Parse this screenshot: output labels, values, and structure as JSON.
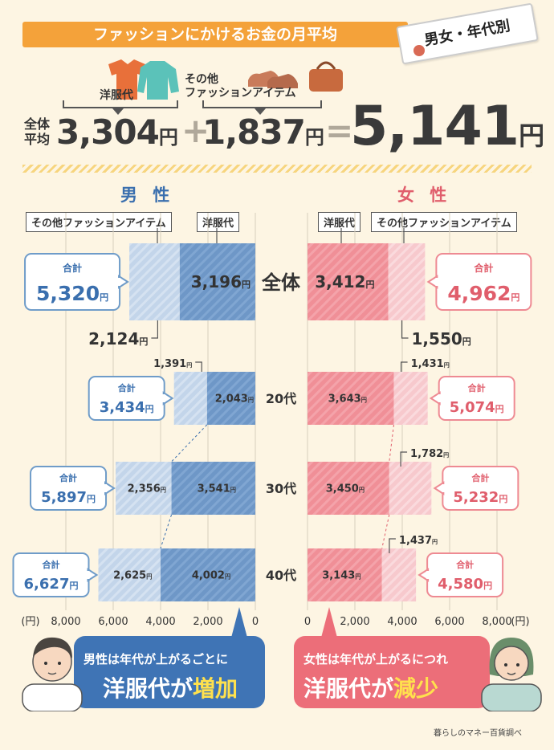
{
  "title": "ファッションにかけるお金の月平均",
  "tag": "男女・年代別",
  "overall": {
    "avg_label": "全体\n平均",
    "clothes_label": "洋服代",
    "other_label": "その他\nファッションアイテム",
    "clothes_value": "3,304",
    "other_value": "1,837",
    "total_value": "5,141",
    "yen": "円",
    "plus": "+",
    "equals": "="
  },
  "male_heading": "男 性",
  "female_heading": "女 性",
  "legend": {
    "other": "その他ファッションアイテム",
    "clothes": "洋服代"
  },
  "total_word": "合計",
  "categories": [
    "全体",
    "20代",
    "30代",
    "40代"
  ],
  "colors": {
    "male_clothes": "#6E97C7",
    "male_other": "#C3D5EA",
    "female_clothes": "#F08F97",
    "female_other": "#F7C9CD",
    "accent_blue": "#3A6FAE",
    "accent_pink": "#E05E6C",
    "title_orange": "#F4A23A"
  },
  "chart_data": {
    "type": "bar",
    "orientation": "horizontal-stacked-butterfly",
    "categories": [
      "全体",
      "20代",
      "30代",
      "40代"
    ],
    "xlim": [
      0,
      8000
    ],
    "x_ticks": [
      "8,000",
      "6,000",
      "4,000",
      "2,000",
      "0",
      "0",
      "2,000",
      "4,000",
      "6,000",
      "8,000"
    ],
    "x_unit": "(円)",
    "male": {
      "clothes": [
        3196,
        2043,
        3541,
        4002
      ],
      "other": [
        2124,
        1391,
        2356,
        2625
      ],
      "total": [
        5320,
        3434,
        5897,
        6627
      ],
      "clothes_labels": [
        "3,196",
        "2,043",
        "3,541",
        "4,002"
      ],
      "other_labels": [
        "2,124",
        "1,391",
        "2,356",
        "2,625"
      ],
      "total_labels": [
        "5,320",
        "3,434",
        "5,897",
        "6,627"
      ]
    },
    "female": {
      "clothes": [
        3412,
        3643,
        3450,
        3143
      ],
      "other": [
        1550,
        1431,
        1782,
        1437
      ],
      "total": [
        4962,
        5074,
        5232,
        4580
      ],
      "clothes_labels": [
        "3,412",
        "3,643",
        "3,450",
        "3,143"
      ],
      "other_labels": [
        "1,550",
        "1,431",
        "1,782",
        "1,437"
      ],
      "total_labels": [
        "4,962",
        "5,074",
        "5,232",
        "4,580"
      ]
    }
  },
  "callouts": {
    "male_line1": "男性は年代が上がるごとに",
    "male_line2a": "洋服代が",
    "male_line2b": "増加",
    "female_line1": "女性は年代が上がるにつれ",
    "female_line2a": "洋服代が",
    "female_line2b": "減少"
  },
  "source": "暮らしのマネー百貨調べ"
}
